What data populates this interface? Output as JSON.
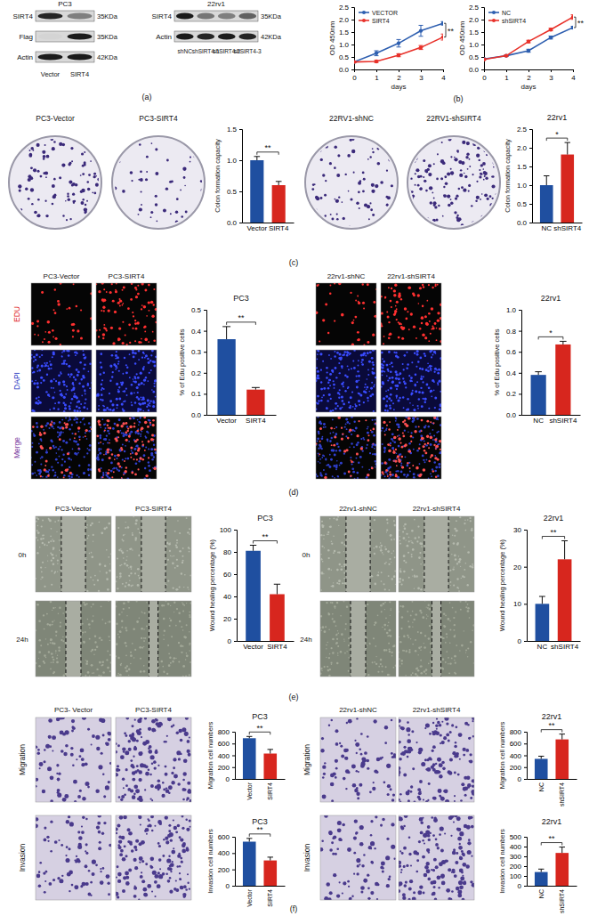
{
  "chart_data": [
    {
      "type": "line",
      "xlabel": "days",
      "ylabel": "OD 450nm",
      "x": [
        0,
        1,
        2,
        3,
        4
      ],
      "xlim": [
        0,
        4
      ],
      "xticks": [
        0,
        1,
        2,
        3,
        4
      ],
      "ylim": [
        0,
        2.5
      ],
      "yticks": [
        {
          "value": 0,
          "label": "0.0"
        },
        0.5,
        {
          "value": 1,
          "label": "1.0"
        },
        1.5,
        {
          "value": 2,
          "label": "2.0"
        },
        2.5
      ],
      "legend": "upper left",
      "marker": "circle",
      "series": [
        {
          "name": "VECTOR",
          "color": "#2e5fb0",
          "values": [
            0.3,
            0.65,
            1.05,
            1.55,
            1.85
          ],
          "errors": [
            0.03,
            0.1,
            0.15,
            0.22,
            0.07
          ]
        },
        {
          "name": "SIRT4",
          "color": "#e8312a",
          "values": [
            0.3,
            0.32,
            0.57,
            0.88,
            1.3
          ],
          "errors": [
            0.03,
            0.04,
            0.06,
            0.08,
            0.12
          ]
        }
      ],
      "annotations": [
        "**"
      ]
    },
    {
      "type": "line",
      "xlabel": "days",
      "ylabel": "OD 450nm",
      "x": [
        0,
        1,
        2,
        3,
        4
      ],
      "xlim": [
        0,
        4
      ],
      "xticks": [
        0,
        1,
        2,
        3,
        4
      ],
      "ylim": [
        0,
        2.5
      ],
      "yticks": [
        {
          "value": 0,
          "label": "0.0"
        },
        0.5,
        {
          "value": 1,
          "label": "1.0"
        },
        1.5,
        {
          "value": 2,
          "label": "2.0"
        },
        2.5
      ],
      "legend": "upper left",
      "marker": "circle",
      "series": [
        {
          "name": "NC",
          "color": "#2e5fb0",
          "values": [
            0.42,
            0.55,
            0.75,
            1.28,
            1.68
          ],
          "errors": [
            0.02,
            0.03,
            0.06,
            0.06,
            0.05
          ]
        },
        {
          "name": "shSIRT4",
          "color": "#e8312a",
          "values": [
            0.4,
            0.55,
            1.12,
            1.6,
            2.1
          ],
          "errors": [
            0.02,
            0.03,
            0.05,
            0.05,
            0.09
          ]
        }
      ],
      "annotations": [
        "**"
      ]
    },
    {
      "type": "bar",
      "ylabel": "Colon formation capacity",
      "categories": [
        "Vector",
        "SIRT4"
      ],
      "values": [
        1.0,
        0.6
      ],
      "errors": [
        0.06,
        0.06
      ],
      "colors": [
        "#1f4fa0",
        "#d7261e"
      ],
      "ylim": [
        0,
        1.5
      ],
      "yticks": [
        {
          "value": 0,
          "label": "0.0"
        },
        0.5,
        {
          "value": 1,
          "label": "1.0"
        },
        1.5
      ],
      "annotations": [
        "**"
      ]
    },
    {
      "type": "bar",
      "title": "22rv1",
      "ylabel": "Colon formation capacity",
      "categories": [
        "NC",
        "shSIRT4"
      ],
      "values": [
        1.0,
        1.82
      ],
      "errors": [
        0.25,
        0.32
      ],
      "colors": [
        "#1f4fa0",
        "#d7261e"
      ],
      "ylim": [
        0,
        2.5
      ],
      "yticks": [
        {
          "value": 0,
          "label": "0.0"
        },
        0.5,
        {
          "value": 1,
          "label": "1.0"
        },
        1.5,
        {
          "value": 2,
          "label": "2.0"
        },
        2.5
      ],
      "annotations": [
        "*"
      ]
    },
    {
      "type": "bar",
      "title": "PC3",
      "ylabel": "% of Edu positive cells",
      "categories": [
        "Vector",
        "SIRT4"
      ],
      "values": [
        0.36,
        0.12
      ],
      "errors": [
        0.06,
        0.01
      ],
      "colors": [
        "#1f4fa0",
        "#d7261e"
      ],
      "ylim": [
        0,
        0.5
      ],
      "yticks": [
        {
          "value": 0,
          "label": "0.0"
        },
        0.1,
        0.2,
        0.3,
        0.4,
        0.5
      ],
      "annotations": [
        "**"
      ]
    },
    {
      "type": "bar",
      "title": "22rv1",
      "ylabel": "% of Edu positive cells",
      "categories": [
        "NC",
        "shSIRT4"
      ],
      "values": [
        0.38,
        0.67
      ],
      "errors": [
        0.03,
        0.03
      ],
      "colors": [
        "#1f4fa0",
        "#d7261e"
      ],
      "ylim": [
        0,
        1.0
      ],
      "yticks": [
        {
          "value": 0,
          "label": "0.0"
        },
        0.2,
        0.4,
        0.6,
        0.8,
        {
          "value": 1,
          "label": "1.0"
        }
      ],
      "annotations": [
        "*"
      ]
    },
    {
      "type": "bar",
      "title": "PC3",
      "ylabel": "Wound healing percentage (%)",
      "categories": [
        "Vector",
        "SIRT4"
      ],
      "values": [
        81,
        42
      ],
      "errors": [
        5,
        9
      ],
      "colors": [
        "#1f4fa0",
        "#d7261e"
      ],
      "ylim": [
        0,
        100
      ],
      "yticks": [
        0,
        20,
        40,
        60,
        80,
        100
      ],
      "annotations": [
        "**"
      ]
    },
    {
      "type": "bar",
      "title": "22rv1",
      "ylabel": "Wound healing percentage (%)",
      "categories": [
        "NC",
        "shSIRT4"
      ],
      "values": [
        10,
        22
      ],
      "errors": [
        2,
        5
      ],
      "colors": [
        "#1f4fa0",
        "#d7261e"
      ],
      "ylim": [
        0,
        30
      ],
      "yticks": [
        0,
        10,
        20,
        30
      ],
      "annotations": [
        "**"
      ]
    },
    {
      "type": "bar",
      "title": "PC3",
      "ylabel": "Migration cell numbers",
      "categories": [
        "Vector",
        "SIRT4"
      ],
      "values": [
        690,
        430
      ],
      "errors": [
        30,
        70
      ],
      "colors": [
        "#1f4fa0",
        "#d7261e"
      ],
      "ylim": [
        0,
        800
      ],
      "yticks": [
        0,
        200,
        400,
        600,
        800
      ],
      "annotations": [
        "**"
      ]
    },
    {
      "type": "bar",
      "title": "22rv1",
      "ylabel": "Migration cell numbers",
      "categories": [
        "NC",
        "shSIRT4"
      ],
      "values": [
        340,
        670
      ],
      "errors": [
        45,
        90
      ],
      "colors": [
        "#1f4fa0",
        "#d7261e"
      ],
      "ylim": [
        0,
        800
      ],
      "yticks": [
        0,
        200,
        400,
        600,
        800
      ],
      "annotations": [
        "**"
      ]
    },
    {
      "type": "bar",
      "title": "PC3",
      "ylabel": "Invasion cell numbers",
      "categories": [
        "Vector",
        "SIRT4"
      ],
      "values": [
        540,
        310
      ],
      "errors": [
        40,
        40
      ],
      "colors": [
        "#1f4fa0",
        "#d7261e"
      ],
      "ylim": [
        0,
        600
      ],
      "yticks": [
        0,
        200,
        400,
        600
      ],
      "annotations": [
        "**"
      ]
    },
    {
      "type": "bar",
      "title": "22rv1",
      "ylabel": "Invasion cell numbers",
      "categories": [
        "NC",
        "shSIRT4"
      ],
      "values": [
        140,
        335
      ],
      "errors": [
        30,
        60
      ],
      "colors": [
        "#1f4fa0",
        "#d7261e"
      ],
      "ylim": [
        0,
        500
      ],
      "yticks": [
        0,
        100,
        200,
        300,
        400,
        500
      ],
      "annotations": [
        "**"
      ]
    }
  ],
  "blots": [
    {
      "title": "PC3",
      "lanes": [
        "Vector",
        "SIRT4"
      ],
      "rows": [
        "SIRT4",
        "Flag",
        "Actin"
      ],
      "sizes": [
        "35KDa",
        "35KDa",
        "42KDa"
      ]
    },
    {
      "title": "22rv1",
      "lanes": [
        "shNC",
        "shSIRT4-1",
        "shSIRT4-2",
        "shSIRT4-3"
      ],
      "rows": [
        "SIRT4",
        "Actin"
      ],
      "sizes": [
        "35KDa",
        "42KDa"
      ]
    }
  ],
  "image_groups": [
    {
      "labels": [
        "PC3-Vector",
        "PC3-SIRT4"
      ]
    },
    {
      "labels": [
        "22RV1-shNC",
        "22RV1-shSIRT4"
      ]
    },
    {
      "labels": [
        "PC3-Vector",
        "PC3-SIRT4"
      ],
      "rows": [
        "EDU",
        "DAPI",
        "Merge"
      ]
    },
    {
      "labels": [
        "22rv1-shNC",
        "22rv1-shSIRT4"
      ]
    },
    {
      "labels": [
        "PC3-Vector",
        "PC3-SIRT4"
      ],
      "rows": [
        "0h",
        "24h"
      ]
    },
    {
      "labels": [
        "22rv1-shNC",
        "22rv1-shSIRT4"
      ],
      "rows": [
        "0h",
        "24h"
      ]
    },
    {
      "labels": [
        "PC3- Vector",
        "PC3-SIRT4"
      ],
      "rows": [
        "Migration",
        "Invasion"
      ]
    },
    {
      "labels": [
        "22rv1-shNC",
        "22rv1-shSIRT4"
      ],
      "rows": [
        "Migration",
        "Invasion"
      ]
    }
  ],
  "panel_labels": [
    "(a)",
    "(b)",
    "(c)",
    "(d)",
    "(e)",
    "(f)"
  ]
}
